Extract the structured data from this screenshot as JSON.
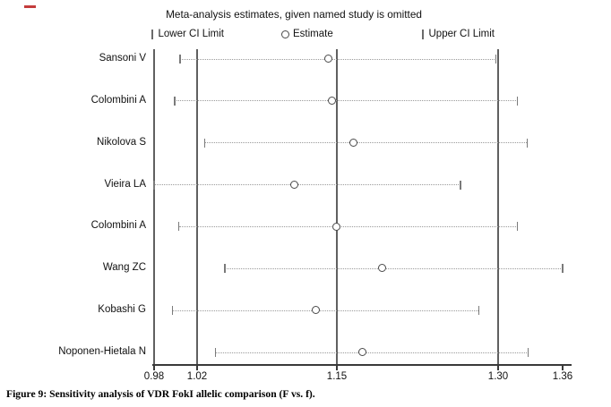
{
  "title": "Meta-analysis estimates, given named study is omitted",
  "legend": {
    "lower_marker": "|",
    "lower_label": "Lower CI Limit",
    "estimate_marker": "circle",
    "estimate_label": "Estimate",
    "upper_marker": "|",
    "upper_label": "Upper CI Limit"
  },
  "caption": "Figure 9: Sensitivity analysis of VDR FokI allelic comparison (F vs. f).",
  "colors": {
    "background": "#ffffff",
    "text": "#1a1a1a",
    "reference_line": "#606060",
    "dotted_ci_line": "#9a9a9a",
    "marker_outline": "#4a4a4a",
    "axis": "#3a3a3a",
    "red_mark": "#c43c3c"
  },
  "chart_data": {
    "type": "scatter",
    "subtype": "leave-one-out-sensitivity-forest",
    "title": "Meta-analysis estimates, given named study is omitted",
    "xlim": [
      0.98,
      1.36
    ],
    "x_tick_labels": [
      "0.98",
      "1.02",
      "1.15",
      "1.30",
      "1.36"
    ],
    "reference_line_values": [
      1.02,
      1.15,
      1.3
    ],
    "axis_left_value": 0.98,
    "grid": false,
    "legend_position": "top",
    "studies": [
      {
        "label": "Sansoni V",
        "lower": 1.004,
        "estimate": 1.142,
        "upper": 1.298
      },
      {
        "label": "Colombini A",
        "lower": 0.999,
        "estimate": 1.146,
        "upper": 1.318
      },
      {
        "label": "Nikolova S",
        "lower": 1.027,
        "estimate": 1.166,
        "upper": 1.327
      },
      {
        "label": "Vieira LA",
        "lower": 0.98,
        "estimate": 1.111,
        "upper": 1.265
      },
      {
        "label": "Colombini A",
        "lower": 1.003,
        "estimate": 1.15,
        "upper": 1.318
      },
      {
        "label": "Wang ZC",
        "lower": 1.046,
        "estimate": 1.192,
        "upper": 1.36
      },
      {
        "label": "Kobashi G",
        "lower": 0.997,
        "estimate": 1.131,
        "upper": 1.282
      },
      {
        "label": "Noponen-Hietala N",
        "lower": 1.037,
        "estimate": 1.174,
        "upper": 1.328
      }
    ]
  }
}
